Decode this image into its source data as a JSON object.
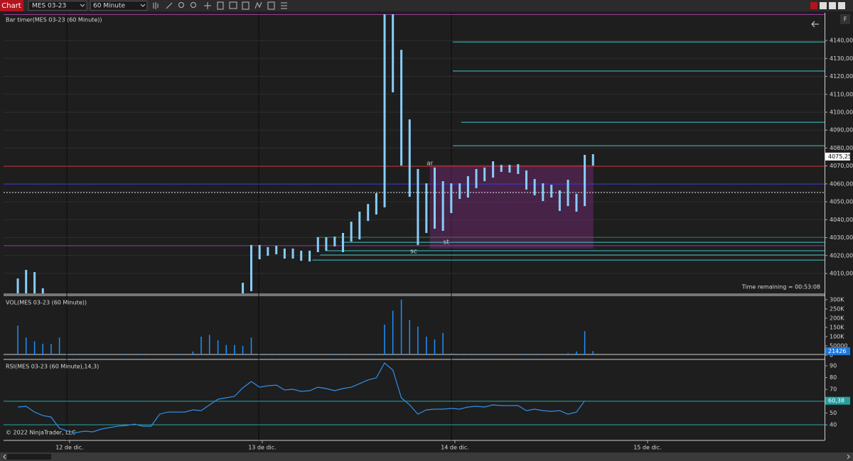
{
  "toolbar": {
    "button": "Chart",
    "instrument": "MES 03-23",
    "interval": "60 Minute",
    "side_button": "F"
  },
  "copyright": "© 2022 NinjaTrader, LLC",
  "chart_data": [
    {
      "type": "ohlc",
      "title": "Bar timer(MES 03-23 (60 Minute))",
      "color": "#87cefa",
      "grid": true,
      "annotation": "Time remaining = 00:53:08",
      "x": [
        11.731,
        11.774,
        11.818,
        11.861,
        11.904,
        11.947,
        11.991,
        12.034,
        12.077,
        12.121,
        12.164,
        12.207,
        12.25,
        12.294,
        12.337,
        12.38,
        12.423,
        12.467,
        12.51,
        12.553,
        12.597,
        12.64,
        12.683,
        12.726,
        12.77,
        12.813,
        12.856,
        12.899,
        12.943,
        12.986,
        13.029,
        13.073,
        13.116,
        13.159,
        13.202,
        13.246,
        13.289,
        13.332,
        13.376,
        13.419,
        13.462,
        13.505,
        13.549,
        13.592,
        13.635,
        13.678,
        13.722,
        13.765,
        13.808,
        13.852,
        13.895,
        13.938,
        13.981,
        14.025,
        14.068,
        14.111,
        14.154,
        14.198,
        14.241,
        14.284,
        14.328,
        14.371,
        14.414,
        14.457,
        14.501,
        14.544,
        14.587,
        14.631,
        14.674,
        14.717
      ],
      "high": [
        4007.2,
        4012,
        4010.8,
        4001.7,
        null,
        null,
        null,
        null,
        null,
        null,
        null,
        null,
        null,
        null,
        null,
        null,
        null,
        null,
        null,
        null,
        null,
        null,
        null,
        null,
        null,
        null,
        null,
        4004.8,
        4025.9,
        4025.9,
        4024.7,
        4025.5,
        4023.9,
        4023.9,
        4022.7,
        4022.7,
        4030.2,
        4030.2,
        4030.6,
        4032.6,
        4038.9,
        4044.5,
        4048.8,
        4054.8,
        4156,
        4156,
        4134.8,
        4096,
        4068.3,
        4060.3,
        4069.1,
        4061.5,
        4060.3,
        4060.3,
        4064.3,
        4068.3,
        4069.1,
        4072.6,
        4070.6,
        4070.6,
        4071,
        4067.5,
        4062.7,
        4060.3,
        4059.5,
        4056.4,
        4062.3,
        4054.4,
        4076.2,
        4076.6
      ],
      "low": [
        3996,
        3998,
        3997,
        3996,
        null,
        null,
        null,
        null,
        null,
        null,
        null,
        null,
        null,
        null,
        null,
        null,
        null,
        null,
        null,
        null,
        null,
        null,
        null,
        null,
        null,
        null,
        null,
        3995,
        4000.1,
        4017.9,
        4019.9,
        4020.7,
        4018.3,
        4018.3,
        4017.1,
        4016.7,
        4021.9,
        4022.7,
        4025.1,
        4021.9,
        4027.8,
        4029,
        4039.3,
        4042.9,
        4046.9,
        4111.1,
        4070.2,
        4052.8,
        4025.9,
        4032.6,
        4035,
        4033.8,
        4043.7,
        4051.6,
        4052.4,
        4057.6,
        4061.5,
        4063.5,
        4066.7,
        4066.3,
        4065.5,
        4056.8,
        4053.6,
        4050.4,
        4052.4,
        4044.9,
        4047.6,
        4044.5,
        4047.6,
        4070.2
      ],
      "xlim": [
        11.657,
        15.919
      ],
      "xticks": [
        {
          "value": 12,
          "label": "12 de dic."
        },
        {
          "value": 13,
          "label": "13 de dic."
        },
        {
          "value": 14,
          "label": "14 de dic."
        },
        {
          "value": 15,
          "label": "15 de dic."
        }
      ],
      "ylim": [
        3998.9,
        4154.7
      ],
      "yticks": [
        {
          "value": 4010,
          "label": "4010,00"
        },
        {
          "value": 4020,
          "label": "4020,00"
        },
        {
          "value": 4030,
          "label": "4030,00"
        },
        {
          "value": 4040,
          "label": "4040,00"
        },
        {
          "value": 4050,
          "label": "4050,00"
        },
        {
          "value": 4060,
          "label": "4060,00"
        },
        {
          "value": 4070,
          "label": "4070,00"
        },
        {
          "value": 4080,
          "label": "4080,00"
        },
        {
          "value": 4090,
          "label": "4090,00"
        },
        {
          "value": 4100,
          "label": "4100,00"
        },
        {
          "value": 4110,
          "label": "4110,00"
        },
        {
          "value": 4120,
          "label": "4120,00"
        },
        {
          "value": 4130,
          "label": "4130,00"
        },
        {
          "value": 4140,
          "label": "4140,00"
        }
      ],
      "current": {
        "value": 4075.25,
        "label": "4075,25",
        "color": "#ffffff"
      },
      "levels": [
        {
          "value": 4139.2,
          "x0": 13.989,
          "color": "#3cc8c8"
        },
        {
          "value": 4123,
          "x0": 13.989,
          "color": "#3cc8c8"
        },
        {
          "value": 4094.4,
          "x0": 14.033,
          "color": "#3cc8c8"
        },
        {
          "value": 4081.3,
          "x0": 13.989,
          "color": "#3cc8c8"
        },
        {
          "value": 4069.8,
          "x0": 11.657,
          "color": "#c83232"
        },
        {
          "value": 4059.9,
          "x0": 11.657,
          "color": "#3a3ad0"
        },
        {
          "value": 4055.2,
          "x0": 11.657,
          "color": "#e8e8e8",
          "style": "dashed"
        },
        {
          "value": 4154.5,
          "x0": 11.657,
          "color": "#9b3c9b"
        },
        {
          "value": 4025.5,
          "x0": 11.657,
          "color": "#9b3c9b"
        },
        {
          "value": 4030.2,
          "x0": 13.28,
          "color": "#2e7a44"
        },
        {
          "value": 4027.4,
          "x0": 13.41,
          "color": "#3cc8c8"
        },
        {
          "value": 4022.7,
          "x0": 13.33,
          "color": "#3cc8c8"
        },
        {
          "value": 4020.3,
          "x0": 13.3,
          "color": "#3cc8c8"
        },
        {
          "value": 4017.5,
          "x0": 13.26,
          "color": "#3cc8c8"
        }
      ],
      "box": {
        "x": [
          13.87,
          14.719
        ],
        "y": [
          4023.9,
          4070.6
        ],
        "color": "#7a2a7a"
      },
      "labels": [
        {
          "text": "ar",
          "x": 13.87,
          "y": 4071.4
        },
        {
          "text": "st",
          "x": 13.955,
          "y": 4027.4
        },
        {
          "text": "sc",
          "x": 13.786,
          "y": 4022.3
        }
      ]
    },
    {
      "type": "bar",
      "title": "VOL(MES 03-23 (60 Minute))",
      "color": "#1e90ff",
      "values": [
        160000,
        95000,
        75000,
        62000,
        60000,
        95000,
        5000,
        5000,
        5000,
        5000,
        5000,
        5000,
        5000,
        5000,
        5000,
        5000,
        5000,
        5000,
        5000,
        5000,
        5000,
        20000,
        100000,
        110000,
        80000,
        55000,
        55000,
        50000,
        95000,
        5000,
        5000,
        5000,
        5000,
        5000,
        5000,
        5000,
        5000,
        5000,
        5000,
        5000,
        5000,
        5000,
        5000,
        5000,
        165000,
        240000,
        300000,
        190000,
        155000,
        100000,
        85000,
        120000,
        10000,
        5000,
        5000,
        5000,
        5000,
        5000,
        5000,
        5000,
        5000,
        5000,
        5000,
        5000,
        5000,
        5000,
        10000,
        20000,
        130000,
        21426
      ],
      "ylim": [
        0,
        315000
      ],
      "yticks": [
        0,
        50000,
        {
          "value": 100000,
          "label": "100K"
        },
        {
          "value": 150000,
          "label": "150K"
        },
        {
          "value": 200000,
          "label": "200K"
        },
        {
          "value": 250000,
          "label": "250K"
        },
        {
          "value": 300000,
          "label": "300K"
        }
      ],
      "current": {
        "value": 21426,
        "color": "#1e78e0"
      }
    },
    {
      "type": "line",
      "title": "RSI(MES 03-23 (60 Minute),14,3)",
      "color": "#2f8fe8",
      "values": [
        55.1,
        55.7,
        50.8,
        47.8,
        46.6,
        37,
        34.6,
        33.4,
        34.6,
        34,
        36.4,
        37.6,
        38.8,
        39.4,
        40.6,
        38.8,
        38.8,
        49,
        50.8,
        50.8,
        50.8,
        52.7,
        52,
        56.9,
        61.7,
        62.9,
        64.1,
        71.3,
        76.7,
        71.9,
        73.1,
        73.7,
        69.5,
        70.1,
        68.3,
        68.9,
        71.9,
        70.7,
        68.9,
        70.7,
        71.9,
        74.9,
        78,
        79.8,
        92.4,
        86.4,
        62.9,
        56.9,
        49,
        52.7,
        53.3,
        53.3,
        53.9,
        53.3,
        55.1,
        55.7,
        55.1,
        56.9,
        56.3,
        56.3,
        56.3,
        52,
        53.3,
        52,
        51.4,
        52,
        49,
        50.8,
        60.38,
        null
      ],
      "ylim": [
        29.8,
        94.2
      ],
      "yticks": [
        40,
        50,
        70,
        80,
        90
      ],
      "levels": [
        {
          "value": 60,
          "color": "#2aa6a6"
        },
        {
          "value": 40,
          "color": "#2aa6a6"
        }
      ],
      "current": {
        "value": 60.38,
        "label": "60,38",
        "color": "#24a0a0"
      }
    }
  ]
}
